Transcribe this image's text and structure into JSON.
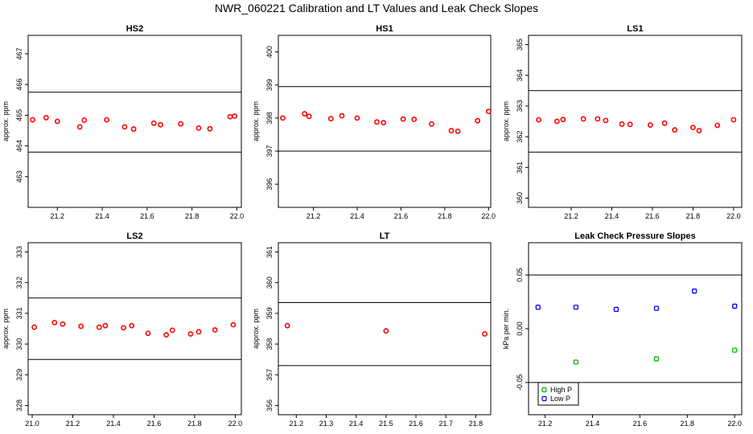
{
  "figure_title": "NWR_060221  Calibration and LT Values and Leak Check Slopes",
  "chart_data": [
    {
      "type": "scatter",
      "title": "HS2",
      "ylabel": "approx. ppm",
      "xlim": [
        21.07,
        22.02
      ],
      "ylim": [
        462,
        467.6
      ],
      "xticks": [
        "21.2",
        "21.4",
        "21.6",
        "21.8",
        "22.0"
      ],
      "yticks": [
        "463",
        "464",
        "465",
        "466",
        "467"
      ],
      "hlines": [
        463.8,
        465.75
      ],
      "color": "#ff0000",
      "x": [
        21.09,
        21.15,
        21.2,
        21.3,
        21.32,
        21.42,
        21.5,
        21.54,
        21.63,
        21.66,
        21.75,
        21.83,
        21.88,
        21.97,
        21.99
      ],
      "y": [
        464.85,
        464.92,
        464.8,
        464.62,
        464.84,
        464.85,
        464.62,
        464.55,
        464.74,
        464.69,
        464.72,
        464.58,
        464.56,
        464.95,
        464.97
      ]
    },
    {
      "type": "scatter",
      "title": "HS1",
      "ylabel": "approx. ppm",
      "xlim": [
        21.04,
        22.01
      ],
      "ylim": [
        395.3,
        400.5
      ],
      "xticks": [
        "21.2",
        "21.4",
        "21.6",
        "21.8",
        "22.0"
      ],
      "yticks": [
        "396",
        "397",
        "398",
        "399",
        "400"
      ],
      "hlines": [
        397.0,
        398.95
      ],
      "color": "#ff0000",
      "x": [
        21.06,
        21.16,
        21.18,
        21.28,
        21.33,
        21.4,
        21.49,
        21.52,
        21.61,
        21.66,
        21.74,
        21.83,
        21.86,
        21.95,
        22.0
      ],
      "y": [
        398.0,
        398.13,
        398.05,
        397.98,
        398.07,
        398.0,
        397.88,
        397.86,
        397.97,
        397.96,
        397.82,
        397.62,
        397.6,
        397.92,
        398.2
      ]
    },
    {
      "type": "scatter",
      "title": "LS1",
      "ylabel": "approx. ppm",
      "xlim": [
        20.99,
        22.04
      ],
      "ylim": [
        359.7,
        365.3
      ],
      "xticks": [
        "21.2",
        "21.4",
        "21.6",
        "21.8",
        "22.0"
      ],
      "yticks": [
        "360",
        "361",
        "362",
        "363",
        "364",
        "365"
      ],
      "hlines": [
        361.5,
        363.5
      ],
      "color": "#ff0000",
      "x": [
        21.04,
        21.13,
        21.16,
        21.26,
        21.33,
        21.37,
        21.45,
        21.49,
        21.59,
        21.66,
        21.71,
        21.8,
        21.83,
        21.92,
        22.0
      ],
      "y": [
        362.55,
        362.5,
        362.56,
        362.58,
        362.58,
        362.53,
        362.41,
        362.4,
        362.38,
        362.44,
        362.22,
        362.3,
        362.2,
        362.37,
        362.55
      ]
    },
    {
      "type": "scatter",
      "title": "LS2",
      "ylabel": "approx. ppm",
      "xlim": [
        20.98,
        22.03
      ],
      "ylim": [
        327.7,
        333.3
      ],
      "xticks": [
        "21.0",
        "21.2",
        "21.4",
        "21.6",
        "21.8",
        "22.0"
      ],
      "yticks": [
        "328",
        "329",
        "330",
        "331",
        "332",
        "333"
      ],
      "hlines": [
        329.5,
        331.5
      ],
      "color": "#ff0000",
      "x": [
        21.01,
        21.11,
        21.15,
        21.24,
        21.33,
        21.36,
        21.45,
        21.49,
        21.57,
        21.66,
        21.69,
        21.78,
        21.82,
        21.9,
        21.99
      ],
      "y": [
        330.55,
        330.7,
        330.65,
        330.58,
        330.55,
        330.6,
        330.53,
        330.6,
        330.35,
        330.3,
        330.45,
        330.33,
        330.4,
        330.46,
        330.63
      ]
    },
    {
      "type": "scatter",
      "title": "LT",
      "ylabel": "approx. ppm",
      "xlim": [
        21.14,
        21.85
      ],
      "ylim": [
        355.7,
        361.3
      ],
      "xticks": [
        "21.2",
        "21.3",
        "21.4",
        "21.5",
        "21.6",
        "21.7",
        "21.8"
      ],
      "yticks": [
        "356",
        "357",
        "358",
        "359",
        "360",
        "361"
      ],
      "hlines": [
        357.3,
        359.35
      ],
      "color": "#ff0000",
      "x": [
        21.17,
        21.5,
        21.83
      ],
      "y": [
        358.6,
        358.43,
        358.33
      ]
    },
    {
      "type": "scatter",
      "title": "Leak Check Pressure Slopes",
      "ylabel": "kPa per min.",
      "xlim": [
        21.13,
        22.03
      ],
      "ylim": [
        -0.08,
        0.08
      ],
      "xticks": [
        "21.2",
        "21.4",
        "21.6",
        "21.8",
        "22.0"
      ],
      "yticks": [
        "-0.05",
        "0.00",
        "0.05"
      ],
      "hlines": [
        -0.05,
        0.05
      ],
      "legend": "bottom-left",
      "series": [
        {
          "name": "High P",
          "color": "#00bb00",
          "x": [
            21.33,
            21.67,
            22.0
          ],
          "y": [
            -0.031,
            -0.028,
            -0.02
          ]
        },
        {
          "name": "Low P",
          "color": "#0000ff",
          "x": [
            21.17,
            21.33,
            21.5,
            21.67,
            21.83,
            22.0
          ],
          "y": [
            0.02,
            0.02,
            0.018,
            0.019,
            0.035,
            0.021
          ]
        }
      ]
    }
  ]
}
